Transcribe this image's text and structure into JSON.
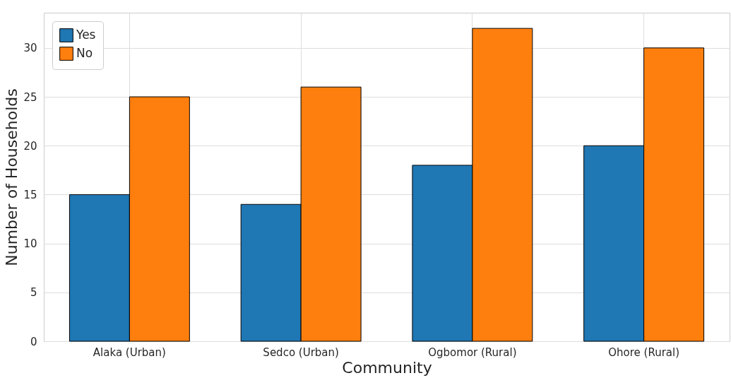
{
  "chart_data": {
    "type": "bar",
    "xlabel": "Community",
    "ylabel": "Number of Households",
    "categories": [
      "Alaka (Urban)",
      "Sedco (Urban)",
      "Ogbomor (Rural)",
      "Ohore (Rural)"
    ],
    "series": [
      {
        "name": "Yes",
        "color": "#1f77b4",
        "values": [
          15,
          14,
          18,
          20
        ]
      },
      {
        "name": "No",
        "color": "#ff7f0e",
        "values": [
          25,
          26,
          32,
          30
        ]
      }
    ],
    "ylim": [
      0,
      33.6
    ],
    "yticks": [
      0,
      5,
      10,
      15,
      20,
      25,
      30
    ],
    "grid": true,
    "legend": "top left"
  }
}
